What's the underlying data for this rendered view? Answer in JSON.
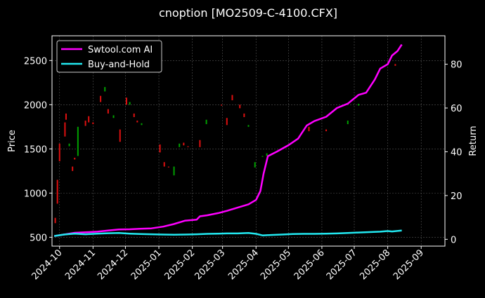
{
  "chart_data": {
    "type": "line",
    "title": "cnoption [MO2509-C-4100.CFX]",
    "xlabel": "",
    "ylabel": "Price",
    "y2label": "Return",
    "ylim": [
      400,
      2780
    ],
    "y2lim": [
      -3.1,
      93.0
    ],
    "xlim": [
      "2024-09-24",
      "2025-09-23"
    ],
    "yticks": [
      500,
      1000,
      1500,
      2000,
      2500
    ],
    "y2ticks": [
      0,
      20,
      40,
      60,
      80
    ],
    "xticks": [
      "2024-10",
      "2024-11",
      "2024-12",
      "2025-01",
      "2025-02",
      "2025-03",
      "2025-04",
      "2025-05",
      "2025-06",
      "2025-07",
      "2025-08",
      "2025-09"
    ],
    "grid": true,
    "legend_position": "top-left",
    "colors": {
      "background": "#000000",
      "strategy": "#ff00ff",
      "buy_hold": "#22e8f0",
      "up_candle": "#00a000",
      "down_candle": "#e01010",
      "grid": "#555555"
    },
    "series": [
      {
        "name": "Swtool.com AI",
        "axis": "right",
        "color": "#ff00ff",
        "x": [
          "2024-09-26",
          "2024-10-05",
          "2024-10-15",
          "2024-10-25",
          "2024-11-05",
          "2024-11-15",
          "2024-11-25",
          "2024-12-05",
          "2024-12-15",
          "2024-12-25",
          "2025-01-05",
          "2025-01-15",
          "2025-01-25",
          "2025-02-05",
          "2025-02-08",
          "2025-02-15",
          "2025-02-25",
          "2025-03-05",
          "2025-03-15",
          "2025-03-25",
          "2025-04-01",
          "2025-04-05",
          "2025-04-08",
          "2025-04-12",
          "2025-04-20",
          "2025-05-01",
          "2025-05-10",
          "2025-05-18",
          "2025-05-25",
          "2025-06-05",
          "2025-06-15",
          "2025-06-25",
          "2025-07-05",
          "2025-07-12",
          "2025-07-20",
          "2025-07-25",
          "2025-08-01",
          "2025-08-05",
          "2025-08-10",
          "2025-08-14"
        ],
        "y": [
          1.5,
          2.2,
          3.0,
          3.2,
          3.5,
          4.0,
          4.5,
          4.6,
          4.8,
          5.0,
          5.8,
          7.0,
          8.5,
          9.0,
          10.5,
          11.0,
          12.0,
          13.0,
          14.5,
          16.0,
          18.0,
          22.0,
          30.0,
          38.0,
          40.0,
          43.0,
          46.0,
          52.0,
          54.0,
          56.0,
          60.0,
          62.0,
          66.0,
          67.0,
          73.0,
          78.0,
          80.0,
          84.0,
          86.0,
          89.0
        ]
      },
      {
        "name": "Buy-and-Hold",
        "axis": "right",
        "color": "#22e8f0",
        "x": [
          "2024-09-26",
          "2024-10-05",
          "2024-10-15",
          "2024-10-25",
          "2024-11-05",
          "2024-11-15",
          "2024-11-25",
          "2024-12-05",
          "2024-12-15",
          "2024-12-25",
          "2025-01-05",
          "2025-01-15",
          "2025-01-25",
          "2025-02-05",
          "2025-02-15",
          "2025-02-25",
          "2025-03-05",
          "2025-03-15",
          "2025-03-25",
          "2025-04-01",
          "2025-04-07",
          "2025-04-15",
          "2025-04-25",
          "2025-05-05",
          "2025-05-15",
          "2025-05-25",
          "2025-06-05",
          "2025-06-15",
          "2025-06-25",
          "2025-07-05",
          "2025-07-15",
          "2025-07-25",
          "2025-08-01",
          "2025-08-05",
          "2025-08-14"
        ],
        "y": [
          1.5,
          2.2,
          2.6,
          2.3,
          2.6,
          2.8,
          2.9,
          2.6,
          2.4,
          2.3,
          2.2,
          2.1,
          2.2,
          2.3,
          2.5,
          2.6,
          2.7,
          2.7,
          2.9,
          2.5,
          1.8,
          2.0,
          2.2,
          2.4,
          2.5,
          2.5,
          2.6,
          2.7,
          2.9,
          3.1,
          3.3,
          3.5,
          3.8,
          3.6,
          4.0
        ]
      }
    ],
    "candles": {
      "axis": "left",
      "x": [
        "2024-09-27",
        "2024-09-29",
        "2024-10-01",
        "2024-10-06",
        "2024-10-07",
        "2024-10-10",
        "2024-10-13",
        "2024-10-15",
        "2024-10-18",
        "2024-10-25",
        "2024-10-28",
        "2024-11-01",
        "2024-11-08",
        "2024-11-12",
        "2024-11-15",
        "2024-11-20",
        "2024-11-26",
        "2024-12-02",
        "2024-12-05",
        "2024-12-09",
        "2024-12-12",
        "2024-12-16",
        "2025-01-02",
        "2025-01-06",
        "2025-01-10",
        "2025-01-15",
        "2025-01-20",
        "2025-01-24",
        "2025-01-28",
        "2025-02-08",
        "2025-02-14",
        "2025-02-28",
        "2025-03-05",
        "2025-03-10",
        "2025-03-17",
        "2025-03-21",
        "2025-03-25",
        "2025-03-31",
        "2025-04-07",
        "2025-04-11",
        "2025-05-20",
        "2025-06-05",
        "2025-06-25",
        "2025-07-05",
        "2025-08-08"
      ],
      "open": [
        720,
        1150,
        1560,
        1800,
        1900,
        1530,
        1300,
        1400,
        1420,
        1820,
        1870,
        1800,
        2100,
        2150,
        1950,
        1850,
        1720,
        2080,
        2000,
        1900,
        1820,
        1770,
        1550,
        1350,
        1300,
        1200,
        1520,
        1570,
        1530,
        1600,
        1780,
        2000,
        1850,
        2110,
        2000,
        1900,
        1750,
        1290,
        1410,
        1420,
        1750,
        1720,
        1780,
        1990,
        2460
      ],
      "close": [
        660,
        880,
        1360,
        1640,
        1830,
        1560,
        1250,
        1380,
        1750,
        1760,
        1800,
        1780,
        2030,
        2200,
        1900,
        1880,
        1580,
        2000,
        2030,
        1860,
        1800,
        1790,
        1460,
        1300,
        1290,
        1300,
        1560,
        1540,
        1520,
        1520,
        1830,
        1990,
        1770,
        2050,
        1960,
        1860,
        1770,
        1350,
        1420,
        1450,
        1700,
        1700,
        1820,
        2010,
        2440
      ]
    }
  }
}
